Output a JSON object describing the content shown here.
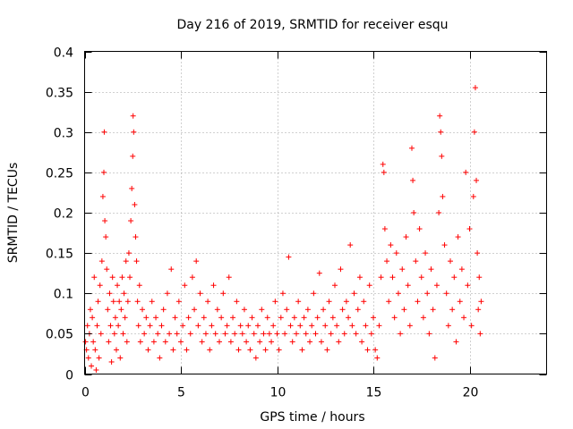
{
  "chart_data": {
    "type": "scatter",
    "title": "Day 216 of 2019, SRMTID for receiver esqu",
    "xlabel": "GPS time / hours",
    "ylabel": "SRMTID / TECUs",
    "xlim": [
      0,
      24
    ],
    "ylim": [
      0,
      0.4
    ],
    "x_ticks": [
      0,
      5,
      10,
      15,
      20
    ],
    "x_tick_labels": [
      "0",
      "5",
      "10",
      "15",
      "20"
    ],
    "y_ticks": [
      0,
      0.05,
      0.1,
      0.15,
      0.2,
      0.25,
      0.3,
      0.35,
      0.4
    ],
    "y_tick_labels": [
      "0",
      "0.05",
      "0.1",
      "0.15",
      "0.2",
      "0.25",
      "0.3",
      "0.35",
      "0.4"
    ],
    "grid": true,
    "marker": "plus",
    "color": "#ff0000",
    "series": [
      {
        "name": "SRMTID",
        "points": [
          [
            0.05,
            0.04
          ],
          [
            0.1,
            0.03
          ],
          [
            0.15,
            0.06
          ],
          [
            0.2,
            0.02
          ],
          [
            0.25,
            0.05
          ],
          [
            0.3,
            0.08
          ],
          [
            0.35,
            0.01
          ],
          [
            0.4,
            0.07
          ],
          [
            0.45,
            0.04
          ],
          [
            0.5,
            0.12
          ],
          [
            0.55,
            0.03
          ],
          [
            0.6,
            0.005
          ],
          [
            0.65,
            0.06
          ],
          [
            0.7,
            0.09
          ],
          [
            0.75,
            0.02
          ],
          [
            0.8,
            0.11
          ],
          [
            0.85,
            0.05
          ],
          [
            0.9,
            0.14
          ],
          [
            0.95,
            0.22
          ],
          [
            1.0,
            0.25
          ],
          [
            1.02,
            0.3
          ],
          [
            1.05,
            0.19
          ],
          [
            1.1,
            0.17
          ],
          [
            1.15,
            0.13
          ],
          [
            1.2,
            0.08
          ],
          [
            1.25,
            0.04
          ],
          [
            1.3,
            0.1
          ],
          [
            1.35,
            0.06
          ],
          [
            1.4,
            0.015
          ],
          [
            1.45,
            0.12
          ],
          [
            1.5,
            0.09
          ],
          [
            1.55,
            0.05
          ],
          [
            1.6,
            0.07
          ],
          [
            1.65,
            0.03
          ],
          [
            1.7,
            0.11
          ],
          [
            1.75,
            0.06
          ],
          [
            1.8,
            0.09
          ],
          [
            1.85,
            0.02
          ],
          [
            1.9,
            0.08
          ],
          [
            1.95,
            0.12
          ],
          [
            2.0,
            0.05
          ],
          [
            2.05,
            0.1
          ],
          [
            2.1,
            0.07
          ],
          [
            2.15,
            0.14
          ],
          [
            2.2,
            0.04
          ],
          [
            2.25,
            0.09
          ],
          [
            2.3,
            0.15
          ],
          [
            2.35,
            0.12
          ],
          [
            2.4,
            0.19
          ],
          [
            2.45,
            0.23
          ],
          [
            2.5,
            0.27
          ],
          [
            2.52,
            0.32
          ],
          [
            2.55,
            0.3
          ],
          [
            2.6,
            0.21
          ],
          [
            2.65,
            0.17
          ],
          [
            2.7,
            0.14
          ],
          [
            2.75,
            0.09
          ],
          [
            2.8,
            0.06
          ],
          [
            2.85,
            0.11
          ],
          [
            2.9,
            0.04
          ],
          [
            3.0,
            0.08
          ],
          [
            3.1,
            0.05
          ],
          [
            3.2,
            0.07
          ],
          [
            3.3,
            0.03
          ],
          [
            3.4,
            0.06
          ],
          [
            3.5,
            0.09
          ],
          [
            3.6,
            0.04
          ],
          [
            3.7,
            0.07
          ],
          [
            3.8,
            0.05
          ],
          [
            3.9,
            0.02
          ],
          [
            4.0,
            0.06
          ],
          [
            4.1,
            0.08
          ],
          [
            4.2,
            0.04
          ],
          [
            4.3,
            0.1
          ],
          [
            4.4,
            0.05
          ],
          [
            4.5,
            0.13
          ],
          [
            4.6,
            0.03
          ],
          [
            4.7,
            0.07
          ],
          [
            4.8,
            0.05
          ],
          [
            4.9,
            0.09
          ],
          [
            5.0,
            0.04
          ],
          [
            5.1,
            0.06
          ],
          [
            5.2,
            0.11
          ],
          [
            5.3,
            0.03
          ],
          [
            5.4,
            0.07
          ],
          [
            5.5,
            0.05
          ],
          [
            5.6,
            0.12
          ],
          [
            5.7,
            0.08
          ],
          [
            5.8,
            0.14
          ],
          [
            5.9,
            0.06
          ],
          [
            6.0,
            0.1
          ],
          [
            6.1,
            0.04
          ],
          [
            6.2,
            0.07
          ],
          [
            6.3,
            0.05
          ],
          [
            6.4,
            0.09
          ],
          [
            6.5,
            0.03
          ],
          [
            6.6,
            0.06
          ],
          [
            6.7,
            0.11
          ],
          [
            6.8,
            0.05
          ],
          [
            6.9,
            0.08
          ],
          [
            7.0,
            0.04
          ],
          [
            7.1,
            0.07
          ],
          [
            7.2,
            0.1
          ],
          [
            7.3,
            0.05
          ],
          [
            7.4,
            0.06
          ],
          [
            7.5,
            0.12
          ],
          [
            7.6,
            0.04
          ],
          [
            7.7,
            0.07
          ],
          [
            7.8,
            0.05
          ],
          [
            7.9,
            0.09
          ],
          [
            8.0,
            0.03
          ],
          [
            8.1,
            0.06
          ],
          [
            8.2,
            0.05
          ],
          [
            8.3,
            0.08
          ],
          [
            8.4,
            0.04
          ],
          [
            8.5,
            0.06
          ],
          [
            8.6,
            0.03
          ],
          [
            8.7,
            0.07
          ],
          [
            8.8,
            0.05
          ],
          [
            8.9,
            0.02
          ],
          [
            9.0,
            0.06
          ],
          [
            9.1,
            0.04
          ],
          [
            9.2,
            0.08
          ],
          [
            9.3,
            0.05
          ],
          [
            9.4,
            0.03
          ],
          [
            9.5,
            0.07
          ],
          [
            9.6,
            0.05
          ],
          [
            9.7,
            0.04
          ],
          [
            9.8,
            0.06
          ],
          [
            9.9,
            0.09
          ],
          [
            10.0,
            0.05
          ],
          [
            10.1,
            0.03
          ],
          [
            10.2,
            0.07
          ],
          [
            10.3,
            0.1
          ],
          [
            10.4,
            0.05
          ],
          [
            10.5,
            0.08
          ],
          [
            10.6,
            0.145
          ],
          [
            10.7,
            0.06
          ],
          [
            10.8,
            0.04
          ],
          [
            10.9,
            0.07
          ],
          [
            11.0,
            0.05
          ],
          [
            11.1,
            0.09
          ],
          [
            11.2,
            0.06
          ],
          [
            11.3,
            0.03
          ],
          [
            11.4,
            0.07
          ],
          [
            11.5,
            0.05
          ],
          [
            11.6,
            0.08
          ],
          [
            11.7,
            0.04
          ],
          [
            11.8,
            0.06
          ],
          [
            11.9,
            0.1
          ],
          [
            12.0,
            0.05
          ],
          [
            12.1,
            0.07
          ],
          [
            12.2,
            0.125
          ],
          [
            12.3,
            0.04
          ],
          [
            12.4,
            0.08
          ],
          [
            12.5,
            0.06
          ],
          [
            12.6,
            0.03
          ],
          [
            12.7,
            0.09
          ],
          [
            12.8,
            0.05
          ],
          [
            12.9,
            0.07
          ],
          [
            13.0,
            0.11
          ],
          [
            13.1,
            0.06
          ],
          [
            13.2,
            0.04
          ],
          [
            13.3,
            0.13
          ],
          [
            13.4,
            0.08
          ],
          [
            13.5,
            0.05
          ],
          [
            13.6,
            0.09
          ],
          [
            13.7,
            0.07
          ],
          [
            13.8,
            0.16
          ],
          [
            13.9,
            0.06
          ],
          [
            14.0,
            0.1
          ],
          [
            14.1,
            0.05
          ],
          [
            14.2,
            0.08
          ],
          [
            14.3,
            0.12
          ],
          [
            14.4,
            0.04
          ],
          [
            14.5,
            0.09
          ],
          [
            14.6,
            0.06
          ],
          [
            14.7,
            0.03
          ],
          [
            14.8,
            0.11
          ],
          [
            14.9,
            0.05
          ],
          [
            15.0,
            0.07
          ],
          [
            15.1,
            0.03
          ],
          [
            15.2,
            0.02
          ],
          [
            15.3,
            0.06
          ],
          [
            15.4,
            0.12
          ],
          [
            15.5,
            0.26
          ],
          [
            15.55,
            0.25
          ],
          [
            15.6,
            0.18
          ],
          [
            15.7,
            0.14
          ],
          [
            15.8,
            0.09
          ],
          [
            15.9,
            0.16
          ],
          [
            16.0,
            0.12
          ],
          [
            16.1,
            0.07
          ],
          [
            16.2,
            0.15
          ],
          [
            16.3,
            0.1
          ],
          [
            16.4,
            0.05
          ],
          [
            16.5,
            0.13
          ],
          [
            16.6,
            0.08
          ],
          [
            16.7,
            0.17
          ],
          [
            16.8,
            0.11
          ],
          [
            16.9,
            0.06
          ],
          [
            17.0,
            0.28
          ],
          [
            17.05,
            0.24
          ],
          [
            17.1,
            0.2
          ],
          [
            17.2,
            0.14
          ],
          [
            17.3,
            0.09
          ],
          [
            17.4,
            0.18
          ],
          [
            17.5,
            0.12
          ],
          [
            17.6,
            0.07
          ],
          [
            17.7,
            0.15
          ],
          [
            17.8,
            0.1
          ],
          [
            17.9,
            0.05
          ],
          [
            18.0,
            0.13
          ],
          [
            18.1,
            0.08
          ],
          [
            18.2,
            0.02
          ],
          [
            18.3,
            0.11
          ],
          [
            18.4,
            0.2
          ],
          [
            18.45,
            0.32
          ],
          [
            18.5,
            0.3
          ],
          [
            18.55,
            0.27
          ],
          [
            18.6,
            0.22
          ],
          [
            18.7,
            0.16
          ],
          [
            18.8,
            0.1
          ],
          [
            18.9,
            0.06
          ],
          [
            19.0,
            0.14
          ],
          [
            19.1,
            0.08
          ],
          [
            19.2,
            0.12
          ],
          [
            19.3,
            0.04
          ],
          [
            19.4,
            0.17
          ],
          [
            19.5,
            0.09
          ],
          [
            19.6,
            0.13
          ],
          [
            19.7,
            0.07
          ],
          [
            19.8,
            0.25
          ],
          [
            19.9,
            0.11
          ],
          [
            20.0,
            0.18
          ],
          [
            20.1,
            0.06
          ],
          [
            20.2,
            0.22
          ],
          [
            20.25,
            0.3
          ],
          [
            20.3,
            0.355
          ],
          [
            20.35,
            0.24
          ],
          [
            20.4,
            0.15
          ],
          [
            20.45,
            0.08
          ],
          [
            20.5,
            0.12
          ],
          [
            20.55,
            0.05
          ],
          [
            20.6,
            0.09
          ]
        ]
      }
    ]
  }
}
